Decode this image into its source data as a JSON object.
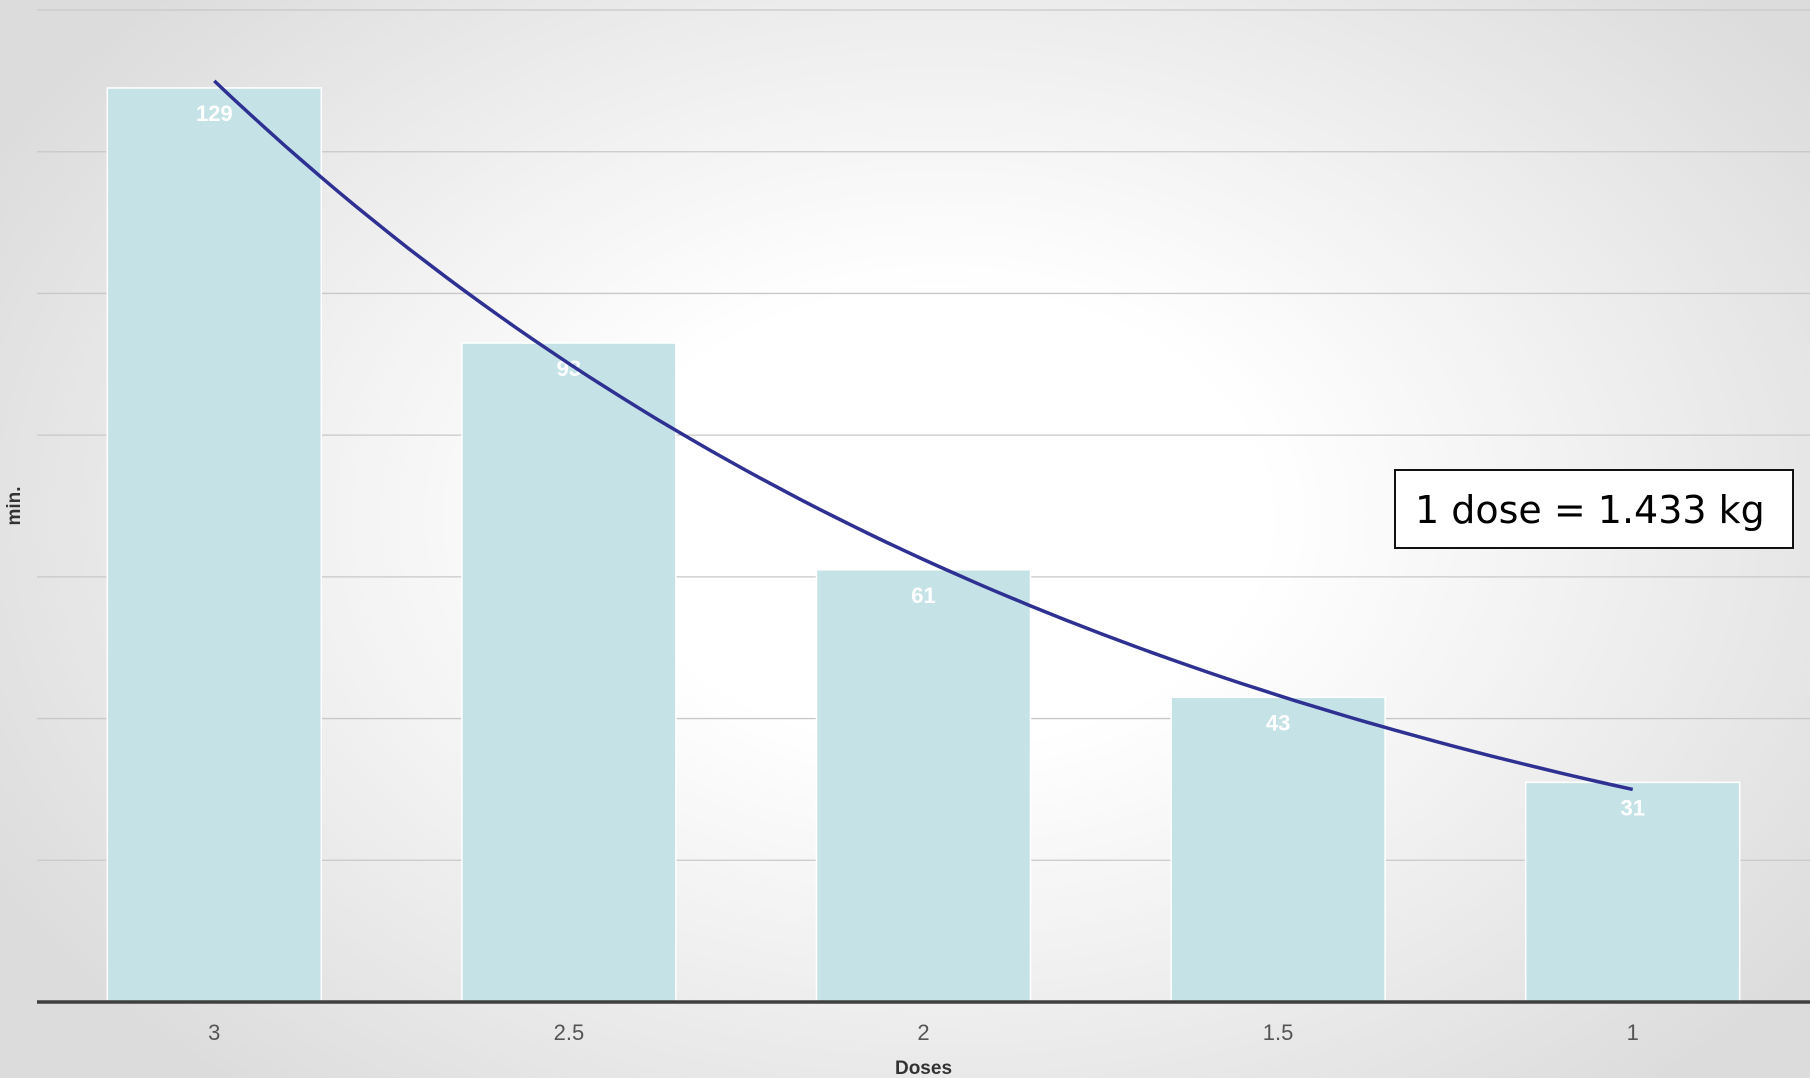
{
  "chart_data": {
    "type": "bar",
    "categories": [
      "3",
      "2.5",
      "2",
      "1.5",
      "1"
    ],
    "values": [
      129,
      93,
      61,
      43,
      31
    ],
    "data_labels": [
      "129",
      "93",
      "61",
      "43",
      "31"
    ],
    "title": "",
    "xlabel": "Doses",
    "ylabel": "min.",
    "ylim": [
      0,
      140
    ],
    "grid": true,
    "y_tick_labels_shown": false,
    "bar_color": "#c5e3e7",
    "trendline": {
      "type": "exponential",
      "color": "#2e3192",
      "start_value": 130,
      "end_value": 30
    },
    "annotation": "1 dose = 1.433 kg"
  }
}
